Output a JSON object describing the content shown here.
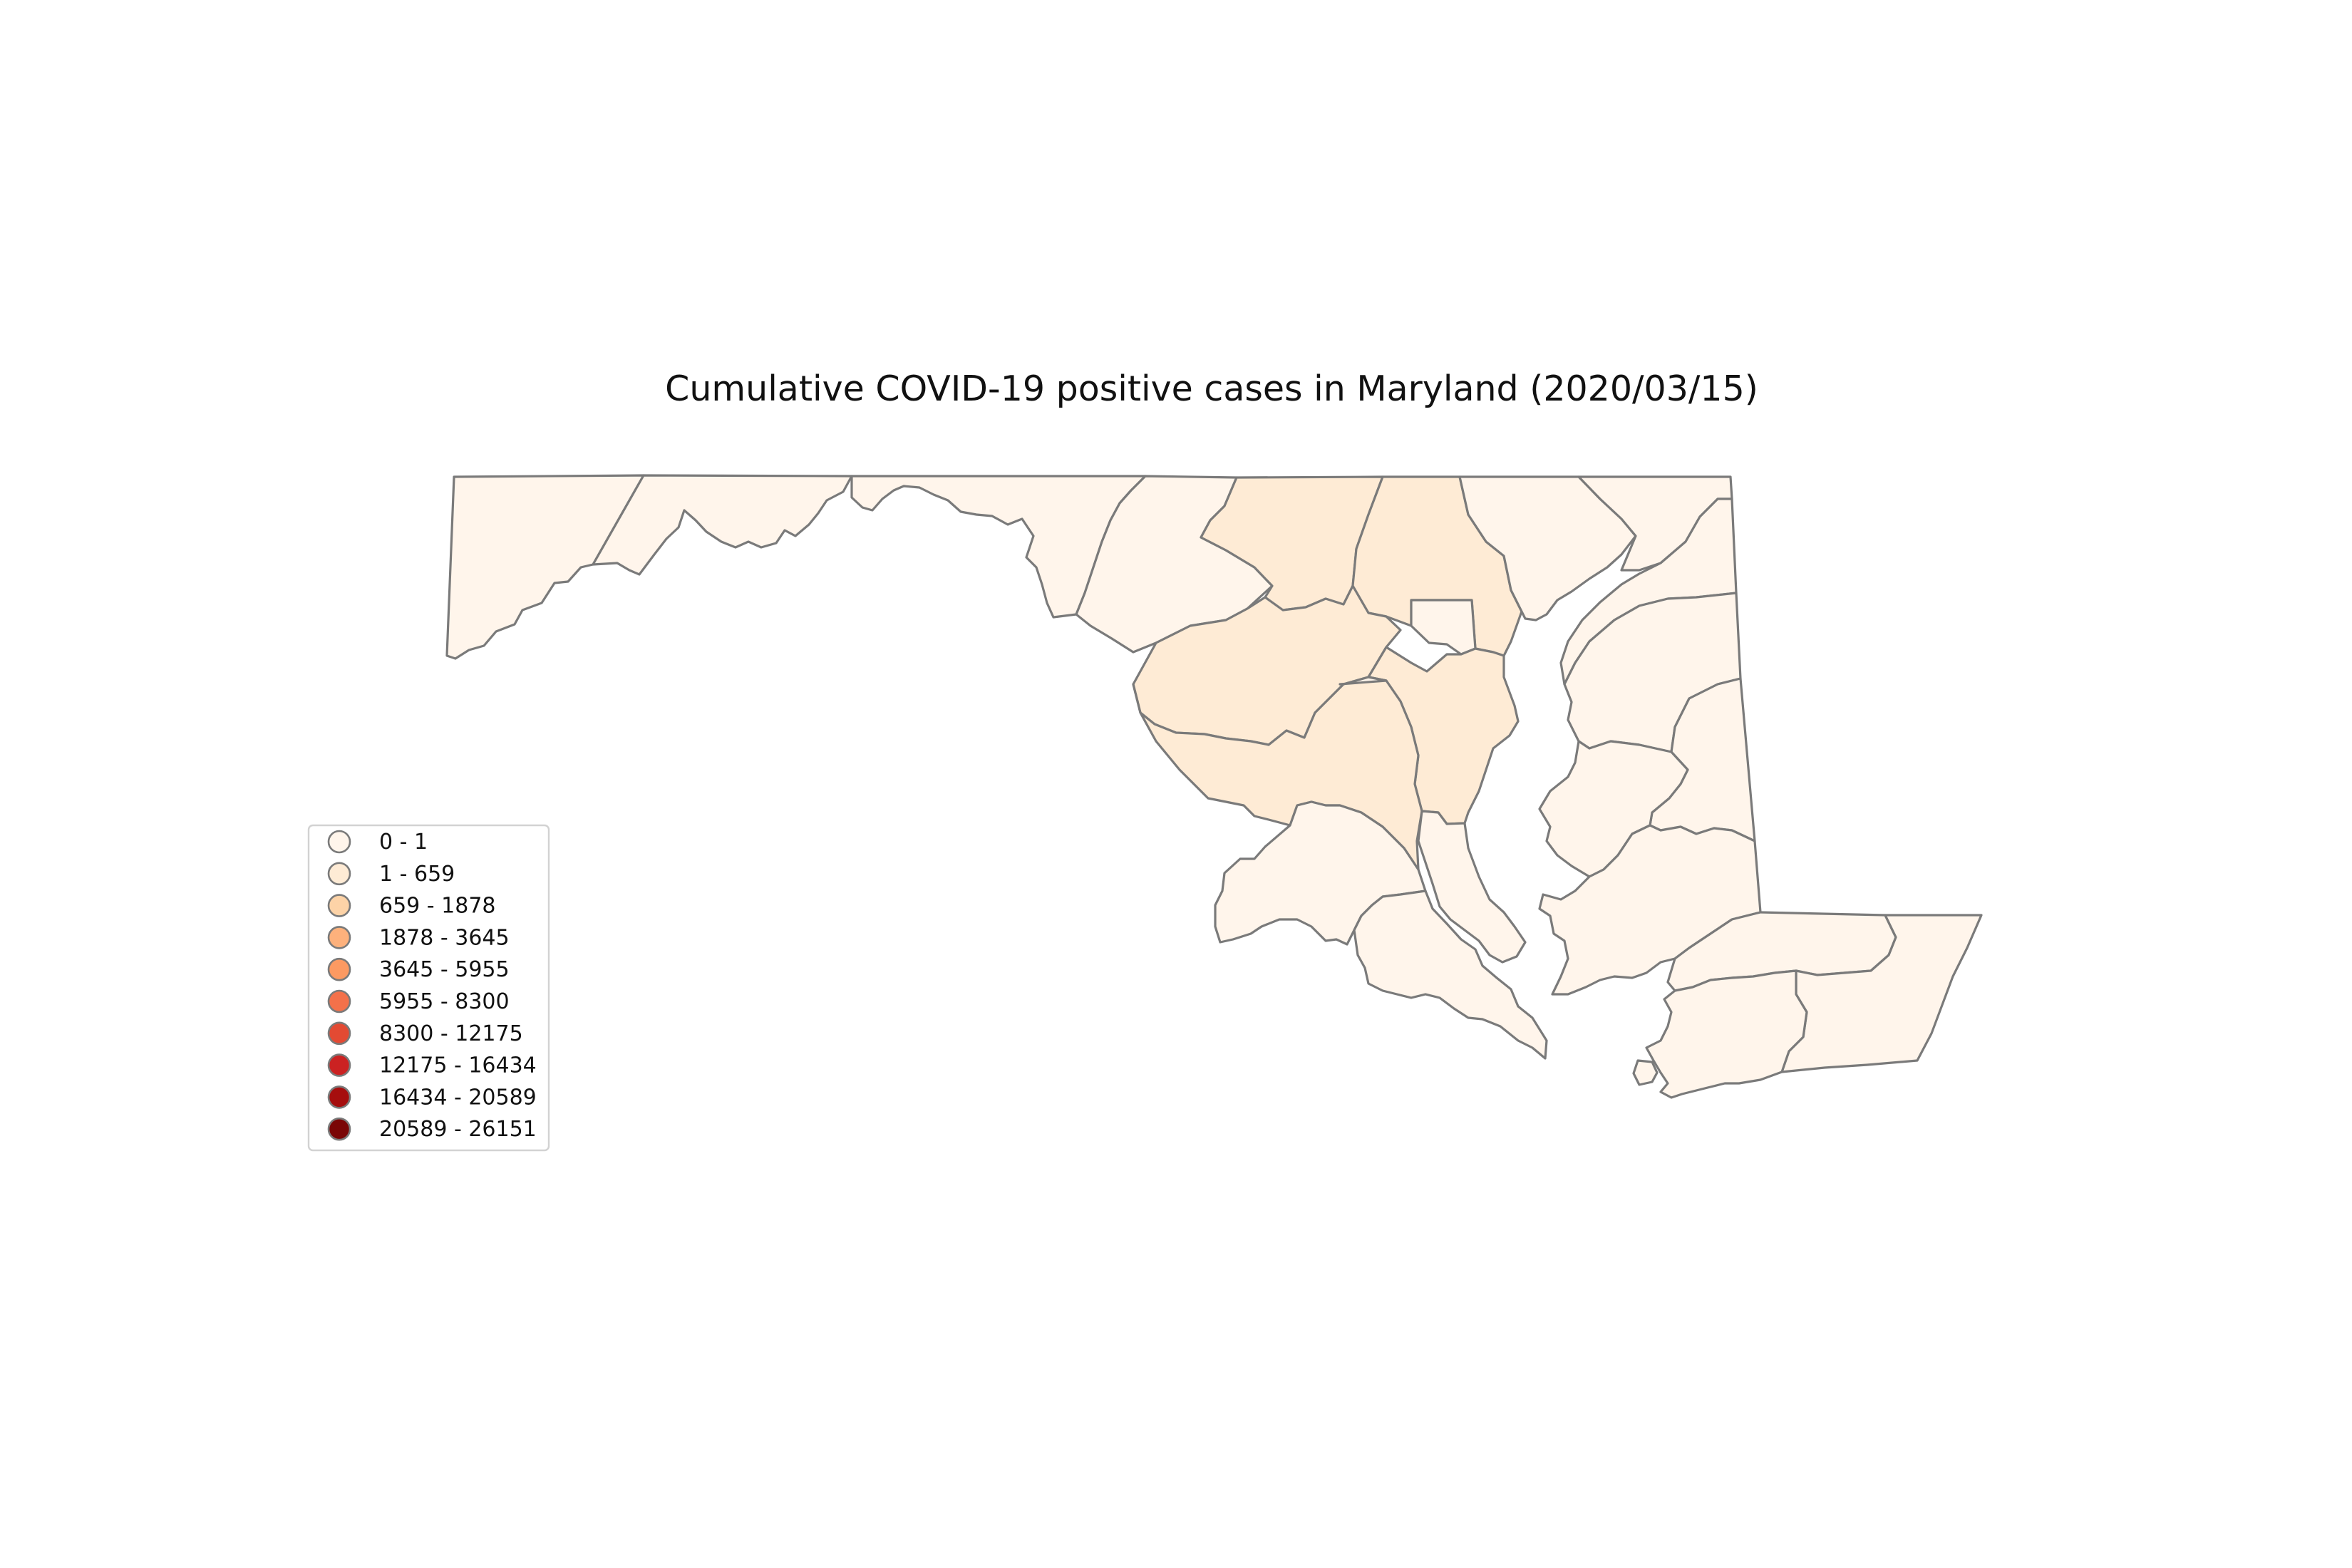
{
  "title": "Cumulative COVID-19 positive cases in Maryland (2020/03/15)",
  "legend": {
    "entries": [
      {
        "label": "0 - 1",
        "color": "#fff5eb"
      },
      {
        "label": "1 - 659",
        "color": "#feebd5"
      },
      {
        "label": "659 - 1878",
        "color": "#fdd3a7"
      },
      {
        "label": "1878 - 3645",
        "color": "#fdb17c"
      },
      {
        "label": "3645 - 5955",
        "color": "#fc9a62"
      },
      {
        "label": "5955 - 8300",
        "color": "#f4714a"
      },
      {
        "label": "8300 - 12175",
        "color": "#e34a33"
      },
      {
        "label": "12175 - 16434",
        "color": "#cb2222"
      },
      {
        "label": "16434 - 20589",
        "color": "#a60e0e"
      },
      {
        "label": "20589 - 26151",
        "color": "#7a0606"
      }
    ]
  },
  "map": {
    "region": "Maryland",
    "county_classes": [
      {
        "class_index": 0
      },
      {
        "class_index": 0
      },
      {
        "class_index": 0
      },
      {
        "class_index": 0
      },
      {
        "class_index": 1
      },
      {
        "class_index": 1
      },
      {
        "class_index": 0
      },
      {
        "class_index": 0
      },
      {
        "class_index": 1
      },
      {
        "class_index": 1
      },
      {
        "class_index": 1
      },
      {
        "class_index": 0
      },
      {
        "class_index": 0
      },
      {
        "class_index": 0
      },
      {
        "class_index": 0
      },
      {
        "class_index": 0
      },
      {
        "class_index": 0
      },
      {
        "class_index": 0
      },
      {
        "class_index": 0
      },
      {
        "class_index": 0
      },
      {
        "class_index": 0
      },
      {
        "class_index": 0
      },
      {
        "class_index": 0
      },
      {
        "class_index": 0
      }
    ]
  }
}
